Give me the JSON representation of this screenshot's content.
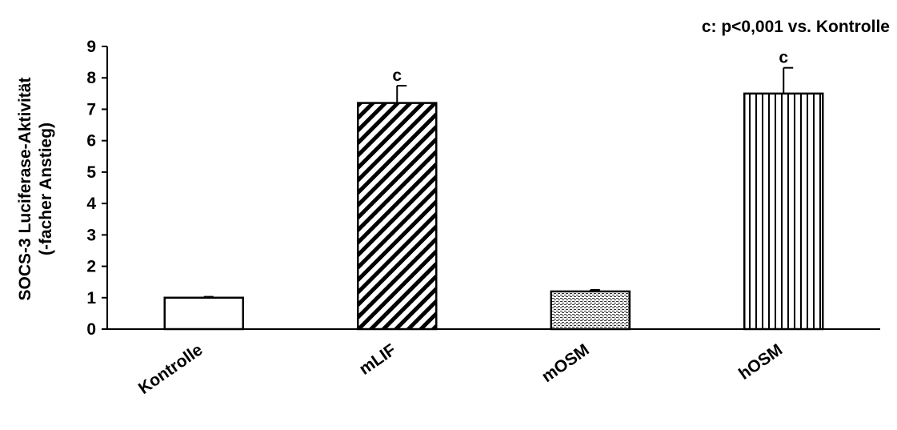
{
  "chart_data": {
    "type": "bar",
    "note": "c: p<0,001 vs. Kontrolle",
    "ylabel_line1": "SOCS-3 Luciferase-Aktivität",
    "ylabel_line2": "(-facher Anstieg)",
    "categories": [
      "Kontrolle",
      "mLIF",
      "mOSM",
      "hOSM"
    ],
    "values": [
      1.0,
      7.2,
      1.2,
      7.5
    ],
    "errors": [
      0.03,
      0.55,
      0.05,
      0.82
    ],
    "significance": [
      "",
      "c",
      "",
      "c"
    ],
    "patterns": [
      "none",
      "diagonal",
      "dots",
      "vertical"
    ],
    "ylim": [
      0,
      9
    ],
    "yticks": [
      0,
      1,
      2,
      3,
      4,
      5,
      6,
      7,
      8,
      9
    ],
    "grid": false,
    "legend": "none",
    "colors": {
      "bar_fill": "#ffffff",
      "bar_stroke": "#000000"
    }
  }
}
